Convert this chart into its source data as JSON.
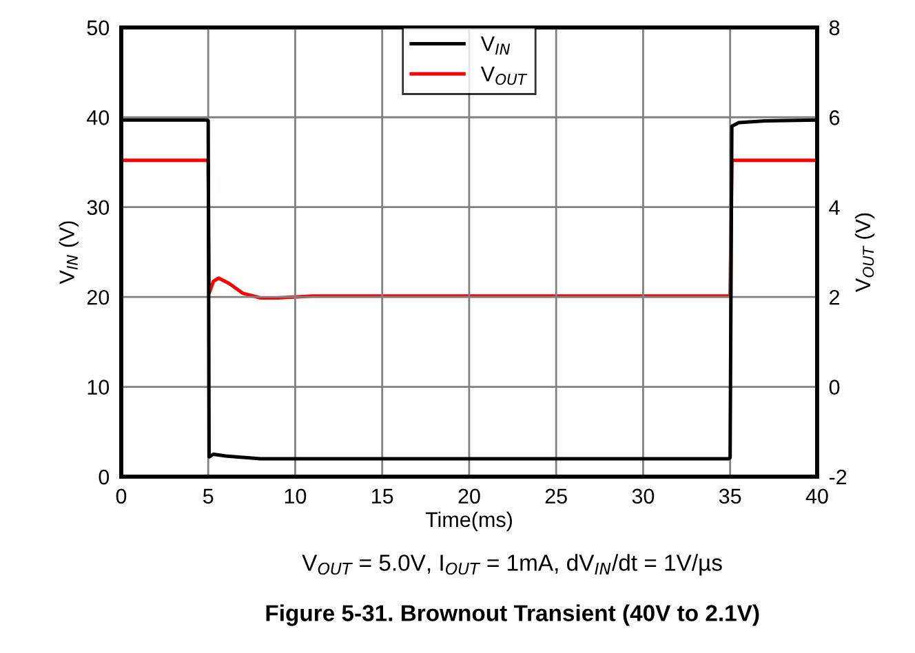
{
  "chart_data": {
    "type": "line",
    "title": "Figure 5-31. Brownout Transient (40V to 2.1V)",
    "xlabel": "Time(ms)",
    "ylabel": "V$_{IN}$ (V)",
    "y2label": "V$_{OUT}$ (V)",
    "annotations": [
      "V$_{OUT}$ = 5.0V, I$_{OUT}$ = 1mA, dV$_{IN}$/dt = 1V/µs"
    ],
    "series": [
      {
        "name": "V$_{IN}$",
        "color": "#000000",
        "x": [
          0,
          4.9,
          5.0,
          5.05,
          5.3,
          6,
          8,
          15,
          25,
          34.9,
          35.0,
          35.1,
          35.5,
          37,
          40
        ],
        "values": [
          39.7,
          39.7,
          39.6,
          2.2,
          2.5,
          2.3,
          2.0,
          2.0,
          2.0,
          2.0,
          2.1,
          39.0,
          39.4,
          39.6,
          39.7
        ]
      },
      {
        "name": "V$_{OUT}$",
        "color": "#ff0000",
        "axis": "y2",
        "x": [
          0,
          4.9,
          5.0,
          5.05,
          5.3,
          5.6,
          6.2,
          7,
          8,
          9,
          11,
          20,
          30,
          35.0,
          35.1,
          40
        ],
        "values": [
          5.04,
          5.04,
          5.0,
          2.08,
          2.35,
          2.42,
          2.3,
          2.08,
          1.98,
          1.98,
          2.02,
          2.02,
          2.02,
          2.02,
          5.04,
          5.04
        ]
      }
    ],
    "xlim": [
      0,
      40
    ],
    "xticks": [
      0,
      5,
      10,
      15,
      20,
      25,
      30,
      35,
      40
    ],
    "ylim": [
      0,
      50
    ],
    "yticks": [
      0,
      10,
      20,
      30,
      40,
      50
    ],
    "y2lim": [
      -2,
      8
    ],
    "y2ticks": [
      -2,
      0,
      2,
      4,
      6,
      8
    ],
    "grid": true,
    "legend": "top",
    "line_style": "solid",
    "marker": "none"
  }
}
